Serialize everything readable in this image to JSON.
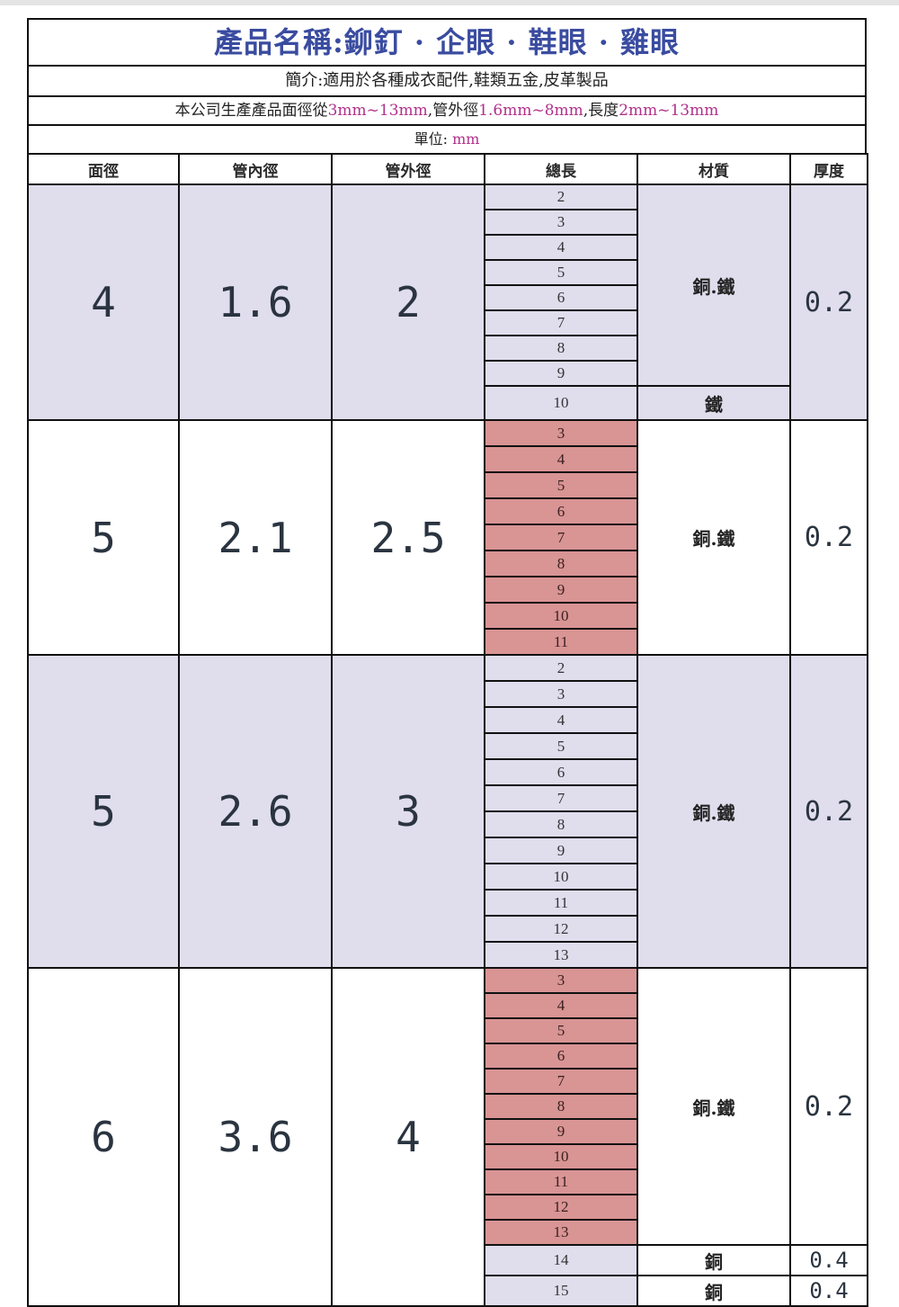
{
  "title": "產品名稱:鉚釘 · 企眼 · 鞋眼 · 雞眼",
  "intro": "簡介:適用於各種成衣配件,鞋類五金,皮革製品",
  "range": {
    "prefix": "本公司生產產品面徑從",
    "face": "3mm~13mm",
    "mid1": ",管外徑",
    "outer": "1.6mm~8mm",
    "mid2": ",長度",
    "length": "2mm~13mm"
  },
  "unit": {
    "label": "單位:",
    "value": "mm"
  },
  "headers": [
    "面徑",
    "管內徑",
    "管外徑",
    "總長",
    "材質",
    "厚度"
  ],
  "groups": [
    {
      "face": "4",
      "inner": "1.6",
      "outer": "2",
      "lengths": [
        "2",
        "3",
        "4",
        "5",
        "6",
        "7",
        "8",
        "9",
        "10"
      ],
      "material": "銅.鐵",
      "material2": "鐵",
      "thickness": "0.2"
    },
    {
      "face": "5",
      "inner": "2.1",
      "outer": "2.5",
      "lengths": [
        "3",
        "4",
        "5",
        "6",
        "7",
        "8",
        "9",
        "10",
        "11"
      ],
      "material": "銅.鐵",
      "thickness": "0.2"
    },
    {
      "face": "5",
      "inner": "2.6",
      "outer": "3",
      "lengths": [
        "2",
        "3",
        "4",
        "5",
        "6",
        "7",
        "8",
        "9",
        "10",
        "11",
        "12",
        "13"
      ],
      "material": "銅.鐵",
      "thickness": "0.2"
    },
    {
      "face": "6",
      "inner": "3.6",
      "outer": "4",
      "lengths": [
        "3",
        "4",
        "5",
        "6",
        "7",
        "8",
        "9",
        "10",
        "11",
        "12",
        "13",
        "14",
        "15"
      ],
      "material": "銅.鐵",
      "thickness": "0.2",
      "extra": [
        {
          "length": "14",
          "material": "銅",
          "thickness": "0.4"
        },
        {
          "length": "15",
          "material": "銅",
          "thickness": "0.4"
        }
      ]
    }
  ],
  "colors": {
    "lavender": "#e0dded",
    "pink": "#d99494",
    "title": "#3a4ca0",
    "highlight": "#b0308a"
  }
}
